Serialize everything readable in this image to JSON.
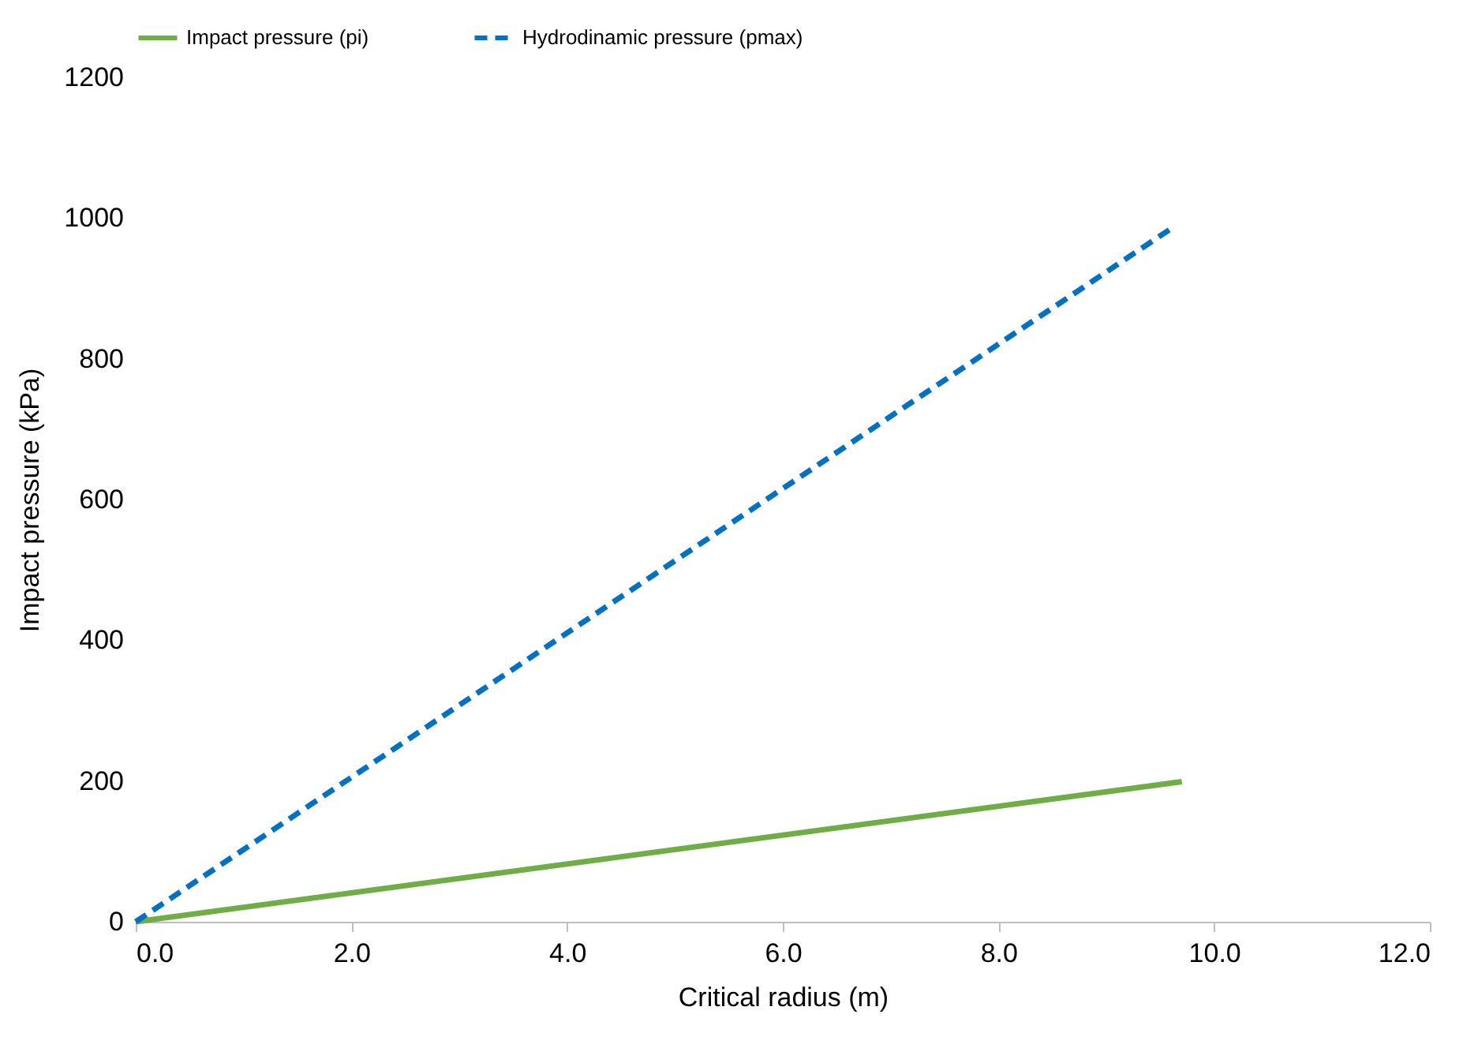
{
  "chart_data": {
    "type": "line",
    "xlabel": "Critical radius (m)",
    "ylabel": "Impact pressure (kPa)",
    "xlim": [
      0,
      12
    ],
    "xticks": [
      {
        "value": 0,
        "label": "0.0"
      },
      {
        "value": 2,
        "label": "2.0"
      },
      {
        "value": 4,
        "label": "4.0"
      },
      {
        "value": 6,
        "label": "6.0"
      },
      {
        "value": 8,
        "label": "8.0"
      },
      {
        "value": 10,
        "label": "10.0"
      },
      {
        "value": 12,
        "label": "12.0"
      }
    ],
    "ylim": [
      0,
      1200
    ],
    "yticks": [
      0,
      200,
      400,
      600,
      800,
      1000,
      1200
    ],
    "grid": false,
    "legend": "top",
    "marker": "none",
    "series": [
      {
        "name": "Impact pressure (pi)",
        "color": "#70ad47",
        "line_style": "solid",
        "x": [
          0,
          9.7
        ],
        "values": [
          0,
          199
        ]
      },
      {
        "name": "Hydrodinamic pressure (pmax)",
        "color": "#0070c0",
        "line_style": "dashed",
        "x": [
          0,
          9.6
        ],
        "values": [
          0,
          985
        ]
      }
    ]
  }
}
